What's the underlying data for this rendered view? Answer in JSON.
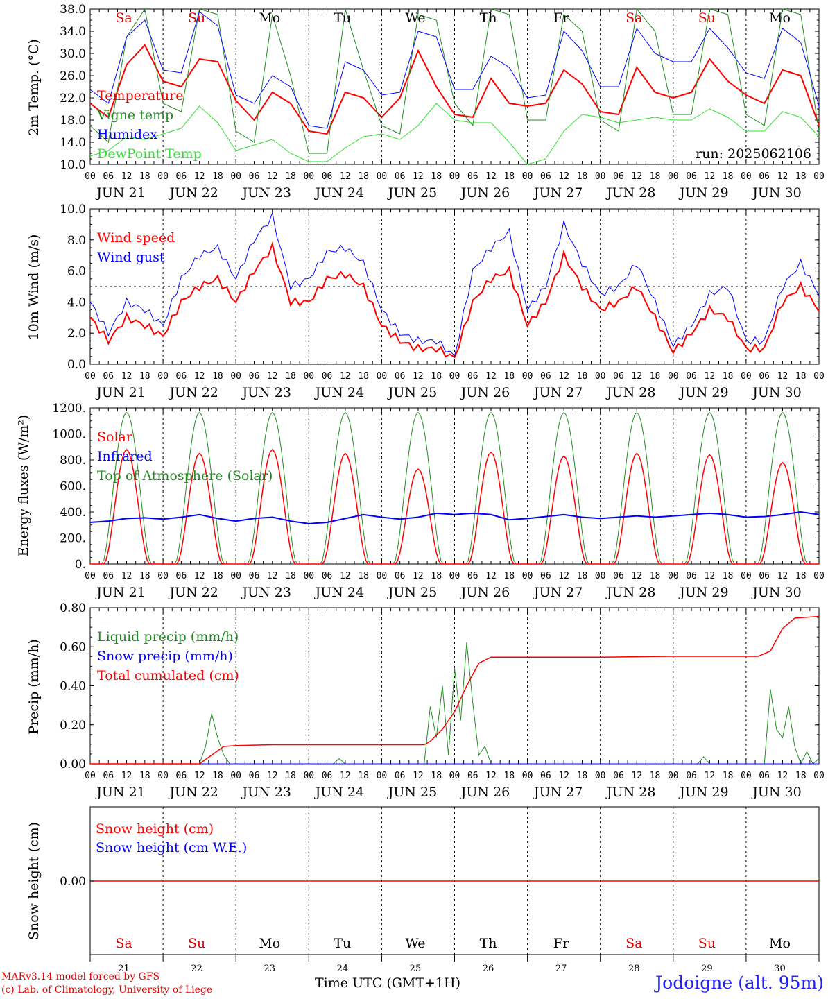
{
  "chart_data": [
    {
      "type": "line",
      "ylabel": "2m Temp. (°C)",
      "ylim": [
        10,
        38
      ],
      "yticks": [
        "10.0",
        "14.0",
        "18.0",
        "22.0",
        "26.0",
        "30.0",
        "34.0",
        "38.0"
      ],
      "annotation": "run: 2025062106",
      "weekdays": [
        {
          "label": "Sa",
          "color": "#e00000"
        },
        {
          "label": "Su",
          "color": "#e00000"
        },
        {
          "label": "Mo",
          "color": "#000000"
        },
        {
          "label": "Tu",
          "color": "#000000"
        },
        {
          "label": "We",
          "color": "#000000"
        },
        {
          "label": "Th",
          "color": "#000000"
        },
        {
          "label": "Fr",
          "color": "#000000"
        },
        {
          "label": "Sa",
          "color": "#e00000"
        },
        {
          "label": "Su",
          "color": "#e00000"
        },
        {
          "label": "Mo",
          "color": "#000000"
        }
      ],
      "x": [
        0,
        6,
        12,
        18,
        24,
        30,
        36,
        42,
        48,
        54,
        60,
        66,
        72,
        78,
        84,
        90,
        96,
        102,
        108,
        114,
        120,
        126,
        132,
        138,
        144,
        150,
        156,
        162,
        168,
        174,
        180,
        186,
        192,
        198,
        204,
        210,
        216,
        222,
        228,
        234,
        240
      ],
      "series": [
        {
          "name": "Temperature",
          "color": "#ff0000",
          "values": [
            21,
            18.5,
            28,
            31.5,
            25,
            24,
            29,
            28.5,
            21.5,
            18,
            23,
            21,
            16,
            15.5,
            23,
            22,
            18.5,
            22,
            30.5,
            24,
            19,
            18.5,
            25.5,
            21,
            20.5,
            21,
            27,
            24.5,
            19.5,
            19,
            27.5,
            23,
            22,
            23,
            29,
            25,
            22.5,
            21,
            27,
            26,
            17
          ]
        },
        {
          "name": "Vigne temp",
          "color": "#228b22",
          "values": [
            17,
            14,
            33,
            38,
            21,
            19.5,
            38,
            37,
            16,
            14,
            37,
            26,
            12,
            12,
            38,
            27,
            17,
            15.5,
            37,
            36,
            21,
            17,
            38,
            37,
            18,
            18,
            37,
            34,
            18,
            16,
            38,
            34,
            19,
            19,
            38,
            37,
            19,
            17,
            38,
            37,
            16
          ]
        },
        {
          "name": "Humidex",
          "color": "#0000ff",
          "values": [
            23.5,
            21,
            33,
            36,
            27,
            26.5,
            37.5,
            35,
            22.5,
            21,
            26,
            24,
            17,
            16.5,
            28.5,
            27,
            22.5,
            23,
            34,
            33,
            23.5,
            23.5,
            29.5,
            27.5,
            22,
            22.5,
            34,
            30.5,
            24,
            24,
            34.5,
            30,
            28.5,
            28.5,
            34.5,
            31,
            26.5,
            25.5,
            34.5,
            32,
            20.5
          ]
        },
        {
          "name": "DewPoint Temp",
          "color": "#32e032",
          "values": [
            11.5,
            12.5,
            15,
            14.5,
            15.5,
            16.5,
            20.5,
            17.5,
            12.5,
            13.5,
            14.5,
            12,
            10.5,
            10.5,
            13,
            15,
            15.5,
            14.5,
            17,
            21,
            18,
            17.5,
            17.5,
            14,
            10,
            11,
            16,
            19,
            18.5,
            17.5,
            18,
            18.5,
            18,
            18,
            20,
            18.5,
            16,
            16,
            19.5,
            18.5,
            15
          ]
        }
      ]
    },
    {
      "type": "line",
      "ylabel": "10m Wind (m/s)",
      "ylim": [
        0,
        10
      ],
      "yticks": [
        "0.0",
        "2.0",
        "4.0",
        "6.0",
        "8.0",
        "10.0"
      ],
      "reference_line": 5,
      "x": [
        0,
        6,
        12,
        18,
        24,
        30,
        36,
        42,
        48,
        54,
        60,
        66,
        72,
        78,
        84,
        90,
        96,
        102,
        108,
        114,
        120,
        126,
        132,
        138,
        144,
        150,
        156,
        162,
        168,
        174,
        180,
        186,
        192,
        198,
        204,
        210,
        216,
        222,
        228,
        234,
        240
      ],
      "series": [
        {
          "name": "Wind speed",
          "color": "#ff0000",
          "values": [
            3,
            1.5,
            3,
            2.5,
            1.8,
            4,
            5,
            5.5,
            4,
            6,
            7.5,
            4,
            4,
            5.5,
            5.8,
            5,
            2.5,
            1.5,
            1,
            1,
            0.4,
            4,
            5.5,
            6,
            2.5,
            4,
            7,
            5,
            3.5,
            4,
            5,
            3,
            0.8,
            2,
            3.5,
            3,
            1,
            1,
            4,
            5,
            3.5
          ]
        },
        {
          "name": "Wind gust",
          "color": "#0000ff",
          "values": [
            4,
            2,
            4,
            3.5,
            2.5,
            5.5,
            7,
            7.5,
            5.5,
            8,
            9.5,
            5,
            5.5,
            7.2,
            7.5,
            6.5,
            3.5,
            2,
            1.5,
            1.5,
            0.5,
            6,
            7.5,
            8.5,
            3.5,
            5,
            9,
            6.5,
            4.5,
            5,
            6.5,
            4,
            1.2,
            2.5,
            4.5,
            5,
            1.5,
            1.5,
            5,
            6.5,
            4.5
          ]
        }
      ]
    },
    {
      "type": "line",
      "ylabel": "Energy fluxes (W/m²)",
      "ylim": [
        0,
        1200
      ],
      "yticks": [
        "0.",
        "200.",
        "400.",
        "600.",
        "800.",
        "1000.",
        "1200."
      ],
      "series": [
        {
          "name": "Solar",
          "color": "#ff0000",
          "daily_peaks": [
            880,
            850,
            880,
            850,
            730,
            860,
            830,
            850,
            840,
            780
          ]
        },
        {
          "name": "Infrared",
          "color": "#0000ff",
          "values": [
            320,
            330,
            350,
            355,
            345,
            360,
            380,
            350,
            330,
            350,
            360,
            330,
            310,
            320,
            350,
            380,
            360,
            345,
            360,
            390,
            380,
            390,
            380,
            340,
            350,
            365,
            380,
            360,
            350,
            360,
            370,
            360,
            370,
            380,
            390,
            380,
            360,
            365,
            380,
            400,
            380
          ]
        },
        {
          "name": "Top of Atmosphere (Solar)",
          "color": "#228b22",
          "daily_peak": 1165
        }
      ]
    },
    {
      "type": "line",
      "ylabel": "Precip (mm/h)",
      "ylim": [
        0,
        0.9
      ],
      "yticks": [
        "0.00",
        "0.20",
        "0.40",
        "0.60",
        "0.80"
      ],
      "series": [
        {
          "name": "Liquid precip (mm/h)",
          "color": "#228b22",
          "points": [
            [
              36,
              0
            ],
            [
              38,
              0.1
            ],
            [
              40,
              0.29
            ],
            [
              42,
              0.15
            ],
            [
              44,
              0.05
            ],
            [
              46,
              0
            ],
            [
              80,
              0
            ],
            [
              82,
              0.03
            ],
            [
              84,
              0
            ],
            [
              110,
              0
            ],
            [
              112,
              0.33
            ],
            [
              114,
              0.15
            ],
            [
              116,
              0.45
            ],
            [
              118,
              0.05
            ],
            [
              120,
              0.55
            ],
            [
              122,
              0.25
            ],
            [
              124,
              0.7
            ],
            [
              126,
              0.35
            ],
            [
              128,
              0.05
            ],
            [
              130,
              0.1
            ],
            [
              132,
              0
            ],
            [
              200,
              0
            ],
            [
              202,
              0.04
            ],
            [
              204,
              0
            ],
            [
              222,
              0
            ],
            [
              224,
              0.43
            ],
            [
              226,
              0.2
            ],
            [
              228,
              0.15
            ],
            [
              230,
              0.33
            ],
            [
              232,
              0.1
            ],
            [
              234,
              0
            ],
            [
              236,
              0.07
            ],
            [
              238,
              0
            ],
            [
              240,
              0.03
            ]
          ]
        },
        {
          "name": "Snow precip (mm/h)",
          "color": "#0000ff",
          "points": [
            [
              0,
              0
            ],
            [
              240,
              0
            ]
          ]
        },
        {
          "name": "Total cumulated (cm)",
          "color": "#ff0000",
          "points": [
            [
              0,
              0
            ],
            [
              36,
              0
            ],
            [
              40,
              0.05
            ],
            [
              44,
              0.1
            ],
            [
              48,
              0.105
            ],
            [
              60,
              0.11
            ],
            [
              80,
              0.11
            ],
            [
              110,
              0.11
            ],
            [
              112,
              0.13
            ],
            [
              116,
              0.2
            ],
            [
              120,
              0.3
            ],
            [
              124,
              0.45
            ],
            [
              128,
              0.58
            ],
            [
              132,
              0.615
            ],
            [
              168,
              0.615
            ],
            [
              190,
              0.62
            ],
            [
              220,
              0.62
            ],
            [
              224,
              0.65
            ],
            [
              228,
              0.78
            ],
            [
              232,
              0.84
            ],
            [
              240,
              0.85
            ]
          ]
        }
      ]
    },
    {
      "type": "line",
      "ylabel": "Snow height (cm)",
      "yticks": [
        "0.00"
      ],
      "series": [
        {
          "name": "Snow height (cm)",
          "color": "#ff0000",
          "values": [
            0,
            0
          ]
        },
        {
          "name": "Snow height (cm W.E.)",
          "color": "#0000ff",
          "values": [
            0,
            0
          ]
        }
      ]
    }
  ],
  "x_axis": {
    "hour_labels": [
      "00",
      "06",
      "12",
      "18"
    ],
    "end_label": "00",
    "dates": [
      "JUN 21",
      "JUN 22",
      "JUN 23",
      "JUN 24",
      "JUN 25",
      "JUN 26",
      "JUN 27",
      "JUN 28",
      "JUN 29",
      "JUN 30"
    ],
    "day_numbers": [
      "21",
      "22",
      "23",
      "24",
      "25",
      "26",
      "27",
      "28",
      "29",
      "30"
    ],
    "xlabel": "Time UTC (GMT+1H)"
  },
  "footer": {
    "line1": "MARv3.14 model forced by GFS",
    "line2": "(c) Lab. of Climatology, University of Liege",
    "station": "Jodoigne (alt. 95m)"
  }
}
